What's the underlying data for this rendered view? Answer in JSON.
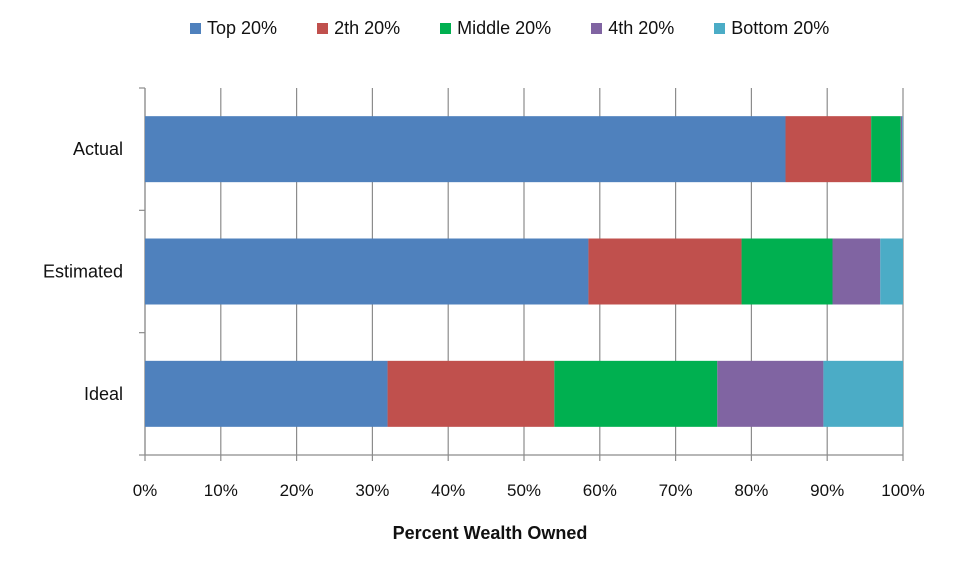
{
  "chart_data": {
    "type": "bar",
    "orientation": "horizontal",
    "stacked": true,
    "title": "",
    "xlabel": "Percent Wealth Owned",
    "ylabel": "",
    "xlim": [
      0,
      100
    ],
    "x_ticks": [
      "0%",
      "10%",
      "20%",
      "30%",
      "40%",
      "50%",
      "60%",
      "70%",
      "80%",
      "90%",
      "100%"
    ],
    "grid": "vertical",
    "legend_position": "top",
    "categories": [
      "Actual",
      "Estimated",
      "Ideal"
    ],
    "series": [
      {
        "name": "Top 20%",
        "color": "#4f81bd",
        "values": [
          84.5,
          58.5,
          32
        ]
      },
      {
        "name": "2th 20%",
        "color": "#c0504d",
        "values": [
          11.3,
          20.2,
          22
        ]
      },
      {
        "name": "Middle 20%",
        "color": "#00b050",
        "values": [
          3.9,
          12.0,
          21.5
        ]
      },
      {
        "name": "4th 20%",
        "color": "#8064a2",
        "values": [
          0.2,
          6.3,
          14
        ]
      },
      {
        "name": "Bottom 20%",
        "color": "#4bacc6",
        "values": [
          0.1,
          3.0,
          10.5
        ]
      }
    ]
  }
}
